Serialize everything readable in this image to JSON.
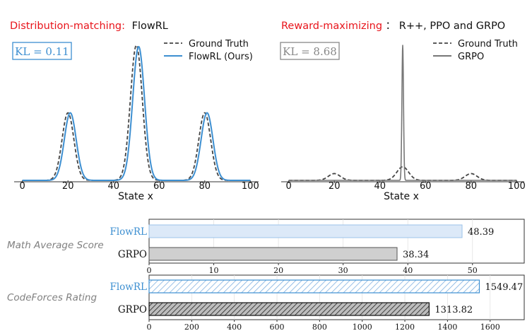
{
  "panels": {
    "left": {
      "title_prefix": "Distribution-matching:",
      "title_suffix": "FlowRL",
      "kl_text": "KL = 0.11",
      "legend": [
        "Ground Truth",
        "FlowRL (Ours)"
      ]
    },
    "right": {
      "title_prefix": "Reward-maximizing",
      "title_suffix": "：  R++, PPO and GRPO",
      "kl_text": "KL = 8.68",
      "legend": [
        "Ground Truth",
        "GRPO"
      ]
    }
  },
  "colors": {
    "title_red": "#e8141b",
    "flowrl_blue": "#3d8fd1",
    "ground_truth": "#444444",
    "grpo_gray": "#777777",
    "kl_right": "#888888",
    "bar_blue_fill": "#dce9f8",
    "bar_gray_fill": "#cfcfcf"
  },
  "chart_data": [
    {
      "type": "line",
      "title": "Distribution-matching: FlowRL",
      "xlabel": "State x",
      "ylabel": "",
      "xlim": [
        -3,
        103
      ],
      "xticks": [
        0,
        20,
        40,
        60,
        80,
        100
      ],
      "legend_position": "top-right",
      "series": [
        {
          "name": "Ground Truth",
          "style": "dashed",
          "peaks": [
            {
              "center": 20,
              "height": 0.5,
              "sigma": 2.6
            },
            {
              "center": 50,
              "height": 1.0,
              "sigma": 2.6
            },
            {
              "center": 80,
              "height": 0.5,
              "sigma": 2.6
            }
          ]
        },
        {
          "name": "FlowRL (Ours)",
          "style": "solid",
          "peaks": [
            {
              "center": 21,
              "height": 0.5,
              "sigma": 2.6
            },
            {
              "center": 51,
              "height": 0.99,
              "sigma": 2.6
            },
            {
              "center": 81,
              "height": 0.5,
              "sigma": 2.6
            }
          ]
        }
      ]
    },
    {
      "type": "line",
      "title": "Reward-maximizing：R++, PPO and GRPO",
      "xlabel": "State x",
      "ylabel": "",
      "xlim": [
        -3,
        103
      ],
      "xticks": [
        0,
        20,
        40,
        60,
        80,
        100
      ],
      "legend_position": "top-right",
      "series": [
        {
          "name": "Ground Truth",
          "style": "dashed",
          "peaks": [
            {
              "center": 20,
              "height": 0.05,
              "sigma": 2.6
            },
            {
              "center": 50,
              "height": 0.1,
              "sigma": 2.6
            },
            {
              "center": 80,
              "height": 0.05,
              "sigma": 2.6
            }
          ]
        },
        {
          "name": "GRPO",
          "style": "solid",
          "peaks": [
            {
              "center": 50,
              "height": 1.0,
              "sigma": 0.35
            }
          ]
        }
      ]
    },
    {
      "type": "bar",
      "orientation": "horizontal",
      "title": "Math Average Score",
      "categories": [
        "FlowRL",
        "GRPO"
      ],
      "values": [
        48.39,
        38.34
      ],
      "value_labels": [
        "48.39",
        "38.34"
      ],
      "xlim": [
        0,
        58
      ],
      "xticks": [
        0,
        10,
        20,
        30,
        40,
        50
      ]
    },
    {
      "type": "bar",
      "orientation": "horizontal",
      "title": "CodeForces Rating",
      "categories": [
        "FlowRL",
        "GRPO"
      ],
      "values": [
        1549.47,
        1313.82
      ],
      "value_labels": [
        "1549.47",
        "1313.82"
      ],
      "xlim": [
        0,
        1760
      ],
      "xticks": [
        0,
        200,
        400,
        600,
        800,
        1000,
        1200,
        1400,
        1600
      ]
    }
  ]
}
